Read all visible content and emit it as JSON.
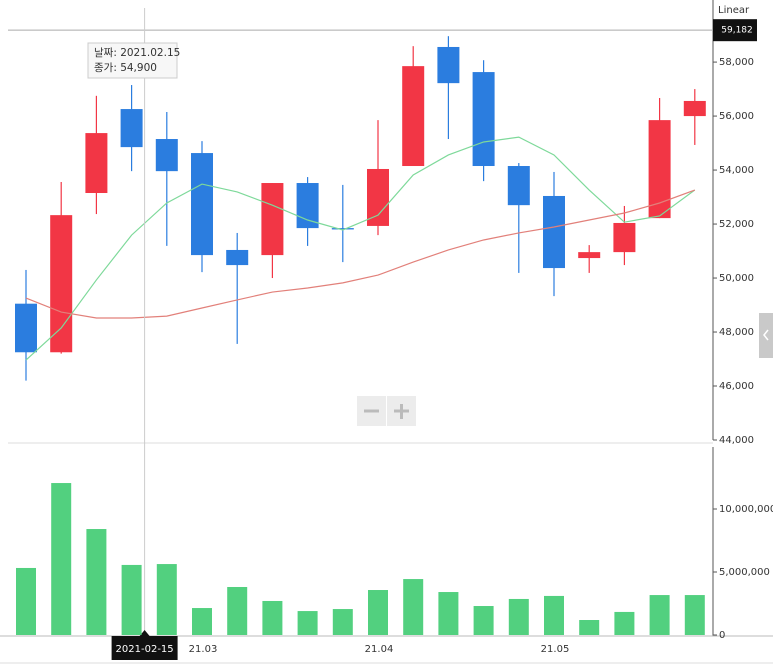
{
  "chart_data": [
    {
      "type": "candlestick",
      "scale_label": "Linear",
      "open": [
        49050,
        47250,
        53150,
        56260,
        55150,
        54630,
        51040,
        50850,
        53520,
        51850,
        51930,
        54150,
        58560,
        57630,
        54150,
        53040,
        50740,
        50960,
        52220,
        56000
      ],
      "high": [
        50300,
        53560,
        56750,
        57150,
        56150,
        55070,
        51670,
        53520,
        53740,
        53450,
        55850,
        58590,
        58960,
        58070,
        54260,
        53930,
        51220,
        52670,
        56670,
        57000
      ],
      "low": [
        46200,
        47200,
        52370,
        53960,
        51190,
        50220,
        47560,
        50000,
        51190,
        50590,
        51590,
        54150,
        55150,
        53590,
        50190,
        49330,
        50190,
        50480,
        52220,
        54930
      ],
      "close": [
        47250,
        52330,
        55370,
        54850,
        53960,
        50850,
        50480,
        53520,
        51850,
        51800,
        54040,
        57850,
        57220,
        54150,
        52700,
        50370,
        50960,
        52040,
        55850,
        56560
      ],
      "up_color": "#f23645",
      "down_color": "#2b7ddf",
      "series": [
        {
          "color": "#7ed99a",
          "values": [
            46960,
            48150,
            49930,
            51590,
            52780,
            53480,
            53190,
            52700,
            52150,
            51780,
            52330,
            53820,
            54560,
            55040,
            55220,
            54560,
            53260,
            52070,
            52300,
            53260
          ]
        },
        {
          "color": "#e2807a",
          "values": [
            49260,
            48740,
            48520,
            48520,
            48590,
            48890,
            49190,
            49480,
            49630,
            49820,
            50110,
            50590,
            51040,
            51410,
            51670,
            51890,
            52150,
            52410,
            52780,
            53260
          ]
        }
      ],
      "ylim": [
        44000,
        60300
      ],
      "yticks": [
        {
          "value": 44000,
          "label": "44,000"
        },
        {
          "value": 46000,
          "label": "46,000"
        },
        {
          "value": 48000,
          "label": "48,000"
        },
        {
          "value": 50000,
          "label": "50,000"
        },
        {
          "value": 52000,
          "label": "52,000"
        },
        {
          "value": 54000,
          "label": "54,000"
        },
        {
          "value": 56000,
          "label": "56,000"
        },
        {
          "value": 58000,
          "label": "58,000"
        }
      ],
      "crosshair_value": {
        "value": 59182,
        "label": "59,182"
      },
      "crosshair_date": "2021-02-15",
      "tooltip": [
        "날짜: 2021.02.15",
        "종가: 54,900"
      ]
    },
    {
      "type": "bar",
      "categories": [
        null,
        null,
        null,
        null,
        null,
        "21.03",
        null,
        null,
        null,
        null,
        "21.04",
        null,
        null,
        null,
        null,
        "21.05",
        null,
        null,
        null,
        null
      ],
      "values": [
        5320000,
        12060000,
        8410000,
        5560000,
        5630000,
        2140000,
        3810000,
        2700000,
        1900000,
        2060000,
        3570000,
        4440000,
        3410000,
        2300000,
        2860000,
        3100000,
        1190000,
        1830000,
        3170000,
        3170000
      ],
      "color": "#52d07f",
      "ylim": [
        0,
        14920000
      ],
      "yticks": [
        0,
        {
          "value": 5000000,
          "label": "5,000,000"
        },
        {
          "value": 10000000,
          "label": "10,000,000"
        }
      ]
    }
  ]
}
